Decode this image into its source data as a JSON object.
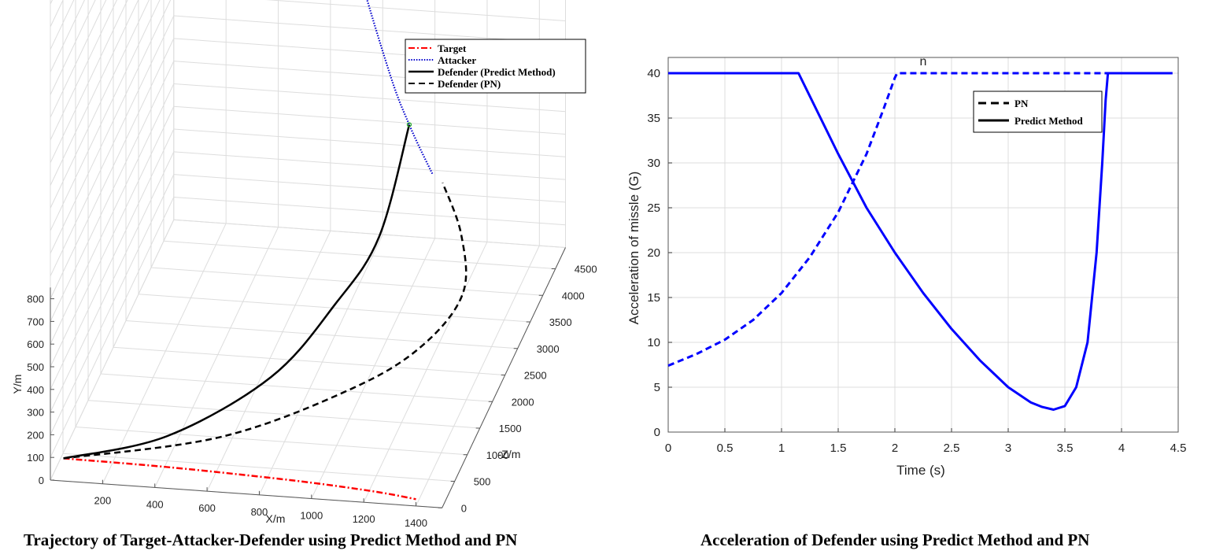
{
  "left_caption": "Trajectory of  Target-Attacker-Defender using Predict Method and PN",
  "right_caption": "Acceleration of  Defender using Predict Method and PN",
  "chart_data": [
    {
      "type": "line",
      "dimension": "3d",
      "xlabel": "X/m",
      "ylabel": "Y/m",
      "zlabel": "-Z/m",
      "x_ticks": [
        "200",
        "400",
        "600",
        "800",
        "1000",
        "1200",
        "1400"
      ],
      "y_ticks": [
        "0",
        "100",
        "200",
        "300",
        "400",
        "500",
        "600",
        "700",
        "800"
      ],
      "z_ticks": [
        "0",
        "500",
        "1000",
        "1500",
        "2000",
        "2500",
        "3000",
        "3500",
        "4000",
        "4500"
      ],
      "grid": true,
      "legend_position": "top-right",
      "legend": [
        "Target",
        "Attacker",
        "Defender (Predict Method)",
        "Defender (PN)"
      ],
      "series": [
        {
          "name": "Target",
          "color": "#ff0000",
          "style": "dash-dot",
          "points": [
            [
              50,
              100,
              0
            ],
            [
              400,
              95,
              0
            ],
            [
              700,
              85,
              0
            ],
            [
              1000,
              70,
              0
            ],
            [
              1250,
              50,
              0
            ],
            [
              1400,
              30,
              0
            ]
          ]
        },
        {
          "name": "Attacker",
          "color": "#0000cc",
          "style": "dotted",
          "points": [
            [
              450,
              2300,
              4800
            ],
            [
              700,
              1500,
              4400
            ],
            [
              900,
              950,
              4050
            ],
            [
              1000,
              740,
              3880
            ],
            [
              1100,
              560,
              3760
            ]
          ]
        },
        {
          "name": "Defender (Predict Method)",
          "color": "#000000",
          "style": "solid",
          "points": [
            [
              50,
              100,
              0
            ],
            [
              400,
              110,
              500
            ],
            [
              700,
              160,
              1500
            ],
            [
              850,
              260,
              2500
            ],
            [
              950,
              400,
              3200
            ],
            [
              1000,
              740,
              3880
            ]
          ]
        },
        {
          "name": "Defender (PN)",
          "color": "#000000",
          "style": "dashed",
          "points": [
            [
              50,
              100,
              0
            ],
            [
              600,
              100,
              600
            ],
            [
              1000,
              110,
              1600
            ],
            [
              1200,
              150,
              2300
            ],
            [
              1300,
              250,
              2900
            ],
            [
              1250,
              400,
              3350
            ],
            [
              1150,
              550,
              3650
            ]
          ]
        }
      ]
    },
    {
      "type": "line",
      "title": "n",
      "xlabel": "Time (s)",
      "ylabel": "Acceleration of missle (G)",
      "xlim": [
        0,
        4.5
      ],
      "ylim": [
        0,
        40
      ],
      "x_ticks": [
        "0",
        "0.5",
        "1",
        "1.5",
        "2",
        "2.5",
        "3",
        "3.5",
        "4",
        "4.5"
      ],
      "y_ticks": [
        "0",
        "5",
        "10",
        "15",
        "20",
        "25",
        "30",
        "35",
        "40"
      ],
      "grid": true,
      "legend_position": "top-right",
      "legend": [
        "PN",
        "Predict Method"
      ],
      "series": [
        {
          "name": "PN",
          "color": "#0000ff",
          "style": "dashed",
          "x": [
            0,
            0.25,
            0.5,
            0.75,
            1,
            1.25,
            1.5,
            1.75,
            1.9,
            2.0,
            2.02,
            2.5,
            3,
            3.5,
            4,
            4.45
          ],
          "y": [
            7.4,
            8.7,
            10.3,
            12.5,
            15.5,
            19.5,
            24.5,
            31,
            36,
            39.5,
            40,
            40,
            40,
            40,
            40,
            40
          ]
        },
        {
          "name": "Predict Method",
          "color": "#0000ff",
          "style": "solid",
          "x": [
            0,
            0.5,
            1,
            1.15,
            1.5,
            1.75,
            2,
            2.25,
            2.5,
            2.75,
            3,
            3.2,
            3.3,
            3.4,
            3.5,
            3.6,
            3.7,
            3.78,
            3.83,
            3.86,
            3.88,
            4,
            4.45
          ],
          "y": [
            40,
            40,
            40,
            40,
            31,
            25,
            20,
            15.5,
            11.5,
            8,
            5,
            3.3,
            2.8,
            2.5,
            2.9,
            5,
            10,
            20,
            30,
            37,
            40,
            40,
            40
          ]
        }
      ]
    }
  ]
}
